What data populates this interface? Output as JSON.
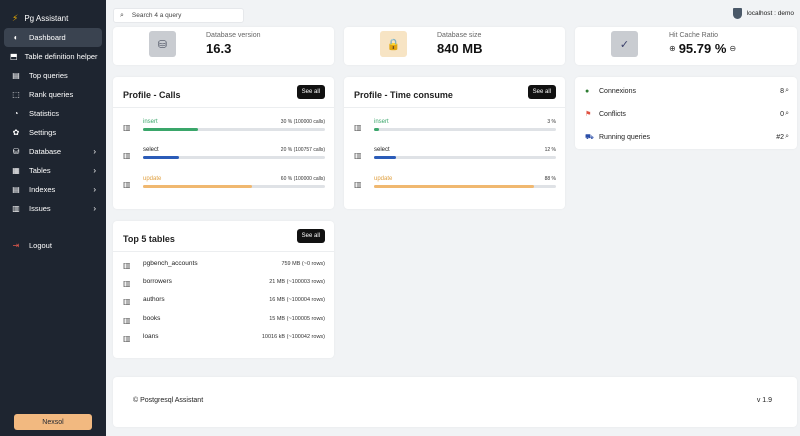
{
  "app": {
    "title": "Pg Assistant",
    "bolt": "⚡"
  },
  "sidebar": {
    "items": [
      {
        "icon": "◐",
        "label": "Dashboard"
      },
      {
        "icon": "⬒",
        "label": "Table definition helper"
      },
      {
        "icon": "▤",
        "label": "Top queries"
      },
      {
        "icon": "⬚",
        "label": "Rank queries"
      },
      {
        "icon": "◔",
        "label": "Statistics"
      },
      {
        "icon": "✿",
        "label": "Settings"
      },
      {
        "icon": "⛁",
        "label": "Database",
        "chev": "›"
      },
      {
        "icon": "▦",
        "label": "Tables",
        "chev": "›"
      },
      {
        "icon": "▤",
        "label": "Indexes",
        "chev": "›"
      },
      {
        "icon": "▥",
        "label": "Issues",
        "chev": "›"
      }
    ],
    "logout": {
      "icon": "⇥",
      "label": "Logout"
    },
    "bottom_button": "Nexsol"
  },
  "search": {
    "icon": "⌕",
    "placeholder": "Search 4 a query"
  },
  "user": {
    "label": "localhost : demo"
  },
  "stats": [
    {
      "icon": "⛁",
      "label": "Database version",
      "value": "16.3",
      "icon_bg": "#c9ccd1",
      "icon_color": "#4a5060"
    },
    {
      "icon": "🔒",
      "label": "Database size",
      "value": "840 MB",
      "icon_bg": "#f7e4c4",
      "icon_color": "#e0a860"
    },
    {
      "icon": "✓",
      "label": "Hit Cache Ratio",
      "value": "95.79 %",
      "left": "⊕",
      "right": "⊖",
      "icon_bg": "#c9ccd1",
      "icon_color": "#3a3f6a"
    }
  ],
  "calls": {
    "title": "Profile - Calls",
    "see_all": "See all",
    "rows": [
      {
        "icon": "▥",
        "name": "insert",
        "stat": "30 % (100000 calls)",
        "pct": 30,
        "color": "#3aa66a",
        "name_color": "#3aa66a"
      },
      {
        "icon": "▥",
        "name": "select",
        "stat": "20 % (100757 calls)",
        "pct": 20,
        "color": "#2b5cb8",
        "name_color": "#222222"
      },
      {
        "icon": "▥",
        "name": "update",
        "stat": "60 % (100000 calls)",
        "pct": 60,
        "color": "#f0b870",
        "name_color": "#e0a040"
      }
    ]
  },
  "time": {
    "title": "Profile - Time consume",
    "see_all": "See all",
    "rows": [
      {
        "icon": "▥",
        "name": "insert",
        "stat": "3 %",
        "pct": 3,
        "color": "#3aa66a",
        "name_color": "#3aa66a"
      },
      {
        "icon": "▥",
        "name": "select",
        "stat": "12 %",
        "pct": 12,
        "color": "#2b5cb8",
        "name_color": "#222222"
      },
      {
        "icon": "▥",
        "name": "update",
        "stat": "88 %",
        "pct": 88,
        "color": "#f0b870",
        "name_color": "#e0a040"
      }
    ]
  },
  "connections": [
    {
      "icon": "●",
      "icon_color": "#2e7d32",
      "name": "Connexions",
      "value": "8",
      "mag": "⌕"
    },
    {
      "icon": "⚑",
      "icon_color": "#e05040",
      "name": "Conflicts",
      "value": "0",
      "mag": "⌕"
    },
    {
      "icon": "⛟",
      "icon_color": "#2b4ea8",
      "name": "Running queries",
      "value": "#2",
      "mag": "⌕"
    }
  ],
  "top_tables": {
    "title": "Top 5 tables",
    "see_all": "See all",
    "rows": [
      {
        "icon": "▥",
        "name": "pgbench_accounts",
        "size": "759 MB (~0 rows)"
      },
      {
        "icon": "▥",
        "name": "borrowers",
        "size": "21 MB (~100003 rows)"
      },
      {
        "icon": "▥",
        "name": "authors",
        "size": "16 MB (~100004 rows)"
      },
      {
        "icon": "▥",
        "name": "books",
        "size": "15 MB (~100005 rows)"
      },
      {
        "icon": "▥",
        "name": "loans",
        "size": "10016 kB (~100042 rows)"
      }
    ]
  },
  "footer": {
    "left": "© Postgresql Assistant",
    "right": "v 1.9"
  }
}
